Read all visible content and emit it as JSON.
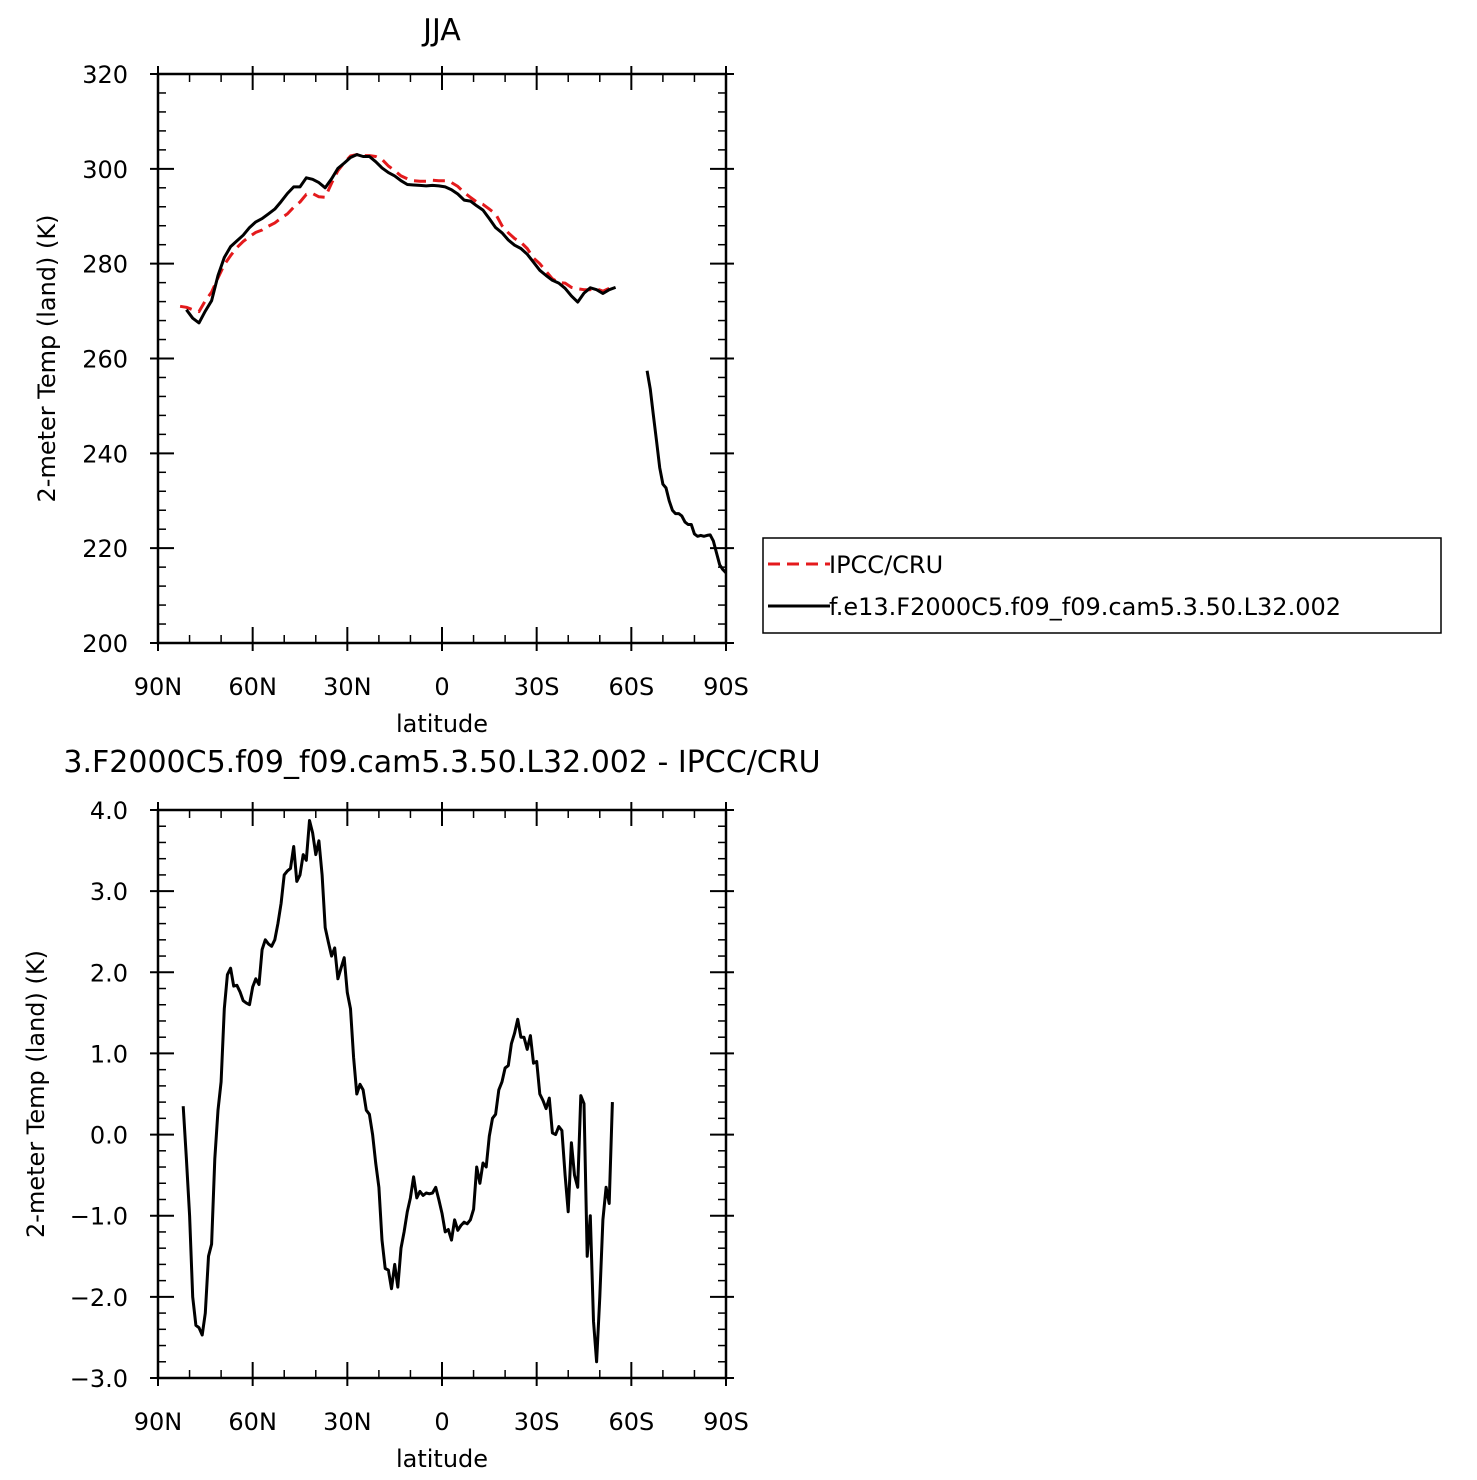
{
  "chart_data": [
    {
      "type": "line",
      "title": "JJA",
      "xlabel": "latitude",
      "ylabel": "2-meter Temp (land) (K)",
      "xlim": [
        90,
        -90
      ],
      "ylim": [
        200,
        320
      ],
      "xticks": [
        90,
        60,
        30,
        0,
        -30,
        -60,
        -90
      ],
      "xtick_labels": [
        "90N",
        "60N",
        "30N",
        "0",
        "30S",
        "60S",
        "90S"
      ],
      "yticks": [
        200,
        220,
        240,
        260,
        280,
        300,
        320
      ],
      "ytick_labels": [
        "200",
        "220",
        "240",
        "260",
        "280",
        "300",
        "320"
      ],
      "grid": false,
      "legend_position": "right, outside plot",
      "series": [
        {
          "name": "IPCC/CRU",
          "color": "#e41a1c",
          "dash": "dashed",
          "x": [
            83,
            81,
            79,
            77,
            75,
            73,
            71,
            69,
            67,
            65,
            63,
            61,
            59,
            57,
            55,
            53,
            51,
            49,
            47,
            45,
            43,
            41,
            39,
            37,
            35,
            33,
            31,
            29,
            27,
            25,
            23,
            21,
            19,
            17,
            15,
            13,
            11,
            9,
            7,
            5,
            3,
            1,
            -1,
            -3,
            -5,
            -7,
            -9,
            -11,
            -13,
            -15,
            -17,
            -19,
            -21,
            -23,
            -25,
            -27,
            -29,
            -31,
            -33,
            -35,
            -37,
            -39,
            -41,
            -43,
            -45,
            -47,
            -49,
            -51,
            -53,
            -55
          ],
          "y": [
            271,
            270.8,
            270.3,
            269.9,
            272.2,
            274,
            277,
            279.8,
            281.7,
            283.4,
            284.7,
            285.7,
            286.6,
            287.1,
            287.9,
            288.6,
            289.6,
            290.5,
            291.9,
            293,
            294.6,
            294.8,
            294.1,
            294,
            297,
            299.6,
            301.3,
            302.7,
            303,
            302.8,
            302.8,
            302.6,
            302,
            300.6,
            299.6,
            298.5,
            297.9,
            297.5,
            297.4,
            297.4,
            297.6,
            297.5,
            297.5,
            297.1,
            296.3,
            295,
            294,
            293,
            292.5,
            291.5,
            290.5,
            288,
            286.5,
            285.3,
            284.5,
            283.2,
            281.2,
            280,
            278.4,
            276.8,
            276,
            275.9,
            275,
            274.7,
            274.5,
            274.5,
            274.7,
            274.2,
            274.8,
            274.5
          ]
        },
        {
          "name": "f.e13.F2000C5.f09_f09.cam5.3.50.L32.002",
          "color": "#000000",
          "dash": "solid",
          "x": [
            81,
            79,
            77,
            75,
            73,
            71,
            69,
            67,
            65,
            63,
            61,
            59,
            57,
            55,
            53,
            51,
            49,
            47,
            45,
            43,
            41,
            39,
            37,
            35,
            33,
            31,
            29,
            27,
            25,
            23,
            21,
            19,
            17,
            15,
            13,
            11,
            9,
            7,
            5,
            3,
            1,
            -1,
            -3,
            -5,
            -7,
            -9,
            -11,
            -13,
            -15,
            -17,
            -19,
            -21,
            -23,
            -25,
            -27,
            -29,
            -31,
            -33,
            -35,
            -37,
            -39,
            -41,
            -43,
            -45,
            -47,
            -49,
            -51,
            -53,
            -55,
            null,
            -65,
            -66,
            -67,
            -68,
            -69,
            -70,
            -71,
            -72,
            -73,
            -74,
            -75,
            -76,
            -77,
            -78,
            -79,
            -80,
            -81,
            -82,
            -83,
            -84,
            -85,
            -86,
            -87,
            -88,
            -89,
            -90
          ],
          "y": [
            270.3,
            268.5,
            267.5,
            270,
            272.2,
            277.5,
            281.3,
            283.6,
            284.8,
            286,
            287.6,
            288.8,
            289.5,
            290.5,
            291.5,
            293.1,
            294.8,
            296.2,
            296.2,
            298.1,
            297.8,
            297.1,
            296,
            297.9,
            300.1,
            301.2,
            302.4,
            303,
            302.6,
            302.6,
            301.5,
            300.2,
            299.2,
            298.5,
            297.5,
            296.7,
            296.6,
            296.5,
            296.4,
            296.5,
            296.4,
            296.2,
            295.6,
            294.7,
            293.4,
            293.2,
            292.2,
            291.3,
            289.5,
            287.6,
            286.5,
            285,
            283.9,
            283.2,
            282,
            280.3,
            278.6,
            277.5,
            276.5,
            275.9,
            274.8,
            273.2,
            271.9,
            273.8,
            274.9,
            274.5,
            273.7,
            274.5,
            275,
            null,
            257.4,
            253.5,
            248,
            242.5,
            237,
            233.5,
            232.7,
            230,
            228,
            227.3,
            227.3,
            226.8,
            225.5,
            225,
            225,
            223,
            222.5,
            222.7,
            222.5,
            222.7,
            222.8,
            221.5,
            219,
            216.5,
            215.5,
            214.8
          ]
        }
      ]
    },
    {
      "type": "line",
      "title": "3.F2000C5.f09_f09.cam5.3.50.L32.002 - IPCC/CRU",
      "xlabel": "latitude",
      "ylabel": "2-meter Temp (land) (K)",
      "xlim": [
        90,
        -90
      ],
      "ylim": [
        -3.0,
        4.0
      ],
      "xticks": [
        90,
        60,
        30,
        0,
        -30,
        -60,
        -90
      ],
      "xtick_labels": [
        "90N",
        "60N",
        "30N",
        "0",
        "30S",
        "60S",
        "90S"
      ],
      "yticks": [
        -3,
        -2,
        -1,
        0,
        1,
        2,
        3,
        4
      ],
      "ytick_labels": [
        "−3.0",
        "−2.0",
        "−1.0",
        "0.0",
        "1.0",
        "2.0",
        "3.0",
        "4.0"
      ],
      "grid": false,
      "series": [
        {
          "color": "#000000",
          "dash": "solid",
          "x": [
            82,
            81,
            80,
            79,
            78,
            77,
            76,
            75,
            74,
            73,
            72,
            71,
            70,
            69,
            68,
            67,
            66,
            65,
            64,
            63,
            62,
            61,
            60,
            59,
            58,
            57,
            56,
            55,
            54,
            53,
            52,
            51,
            50,
            49,
            48,
            47,
            46,
            45,
            44,
            43,
            42,
            41,
            40,
            39,
            38,
            37,
            36,
            35,
            34,
            33,
            32,
            31,
            30,
            29,
            28,
            27,
            26,
            25,
            24,
            23,
            22,
            21,
            20,
            19,
            18,
            17,
            16,
            15,
            14,
            13,
            12,
            11,
            10,
            9,
            8,
            7,
            6,
            5,
            4,
            3,
            2,
            1,
            0,
            -1,
            -2,
            -3,
            -4,
            -5,
            -6,
            -7,
            -8,
            -9,
            -10,
            -11,
            -12,
            -13,
            -14,
            -15,
            -16,
            -17,
            -18,
            -19,
            -20,
            -21,
            -22,
            -23,
            -24,
            -25,
            -26,
            -27,
            -28,
            -29,
            -30,
            -31,
            -32,
            -33,
            -34,
            -35,
            -36,
            -37,
            -38,
            -39,
            -40,
            -41,
            -42,
            -43,
            -44,
            -45,
            -46,
            -47,
            -48,
            -49,
            -50,
            -51,
            -52,
            -53,
            -54
          ],
          "y": [
            0.35,
            -0.3,
            -1.0,
            -2.0,
            -2.35,
            -2.38,
            -2.47,
            -2.2,
            -1.5,
            -1.35,
            -0.3,
            0.3,
            0.65,
            1.55,
            1.97,
            2.05,
            1.83,
            1.84,
            1.76,
            1.65,
            1.62,
            1.6,
            1.82,
            1.92,
            1.85,
            2.28,
            2.4,
            2.35,
            2.32,
            2.4,
            2.6,
            2.85,
            3.2,
            3.25,
            3.28,
            3.55,
            3.12,
            3.2,
            3.45,
            3.38,
            3.87,
            3.72,
            3.45,
            3.62,
            3.2,
            2.55,
            2.37,
            2.2,
            2.3,
            1.92,
            2.05,
            2.18,
            1.75,
            1.55,
            0.95,
            0.5,
            0.62,
            0.55,
            0.3,
            0.25,
            0.0,
            -0.35,
            -0.65,
            -1.3,
            -1.65,
            -1.67,
            -1.9,
            -1.6,
            -1.88,
            -1.4,
            -1.2,
            -0.95,
            -0.78,
            -0.52,
            -0.78,
            -0.7,
            -0.75,
            -0.72,
            -0.73,
            -0.72,
            -0.65,
            -0.8,
            -0.97,
            -1.2,
            -1.17,
            -1.3,
            -1.05,
            -1.18,
            -1.12,
            -1.08,
            -1.1,
            -1.05,
            -0.92,
            -0.4,
            -0.6,
            -0.35,
            -0.4,
            -0.02,
            0.2,
            0.25,
            0.55,
            0.65,
            0.82,
            0.85,
            1.12,
            1.25,
            1.42,
            1.2,
            1.2,
            1.05,
            1.22,
            0.88,
            0.9,
            0.5,
            0.42,
            0.32,
            0.45,
            0.02,
            0.0,
            0.1,
            0.05,
            -0.5,
            -0.95,
            -0.1,
            -0.5,
            -0.65,
            0.48,
            0.38,
            -1.5,
            -1.0,
            -2.3,
            -2.8,
            -2.0,
            -1.05,
            -0.65,
            -0.85,
            0.4
          ]
        }
      ]
    }
  ]
}
